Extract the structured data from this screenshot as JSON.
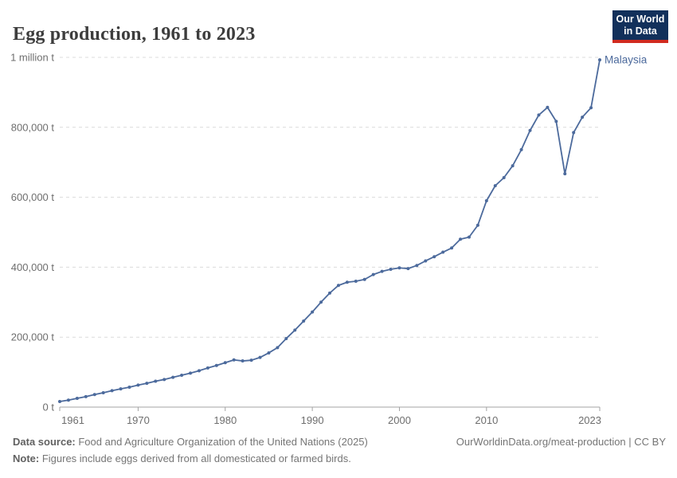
{
  "title": "Egg production, 1961 to 2023",
  "logo": {
    "line1": "Our World",
    "line2": "in Data"
  },
  "entity_label": "Malaysia",
  "footer": {
    "source_label": "Data source:",
    "source_text": " Food and Agriculture Organization of the United Nations (2025)",
    "note_label": "Note:",
    "note_text": " Figures include eggs derived from all domesticated or farmed birds.",
    "url_text": "OurWorldinData.org/meat-production | CC BY"
  },
  "colors": {
    "line": "#4C6A9C",
    "entity_label": "#4C6A9C",
    "grid": "#dcdcdc",
    "axis": "#a3a3a3",
    "tick_text": "#6e6e6e",
    "title_text": "#3d3d3d",
    "footer_text": "#757575",
    "logo_bg": "#12305b",
    "logo_red": "#d12b1f"
  },
  "chart_data": {
    "type": "line",
    "title": "Egg production, 1961 to 2023",
    "xlabel": "",
    "ylabel": "",
    "unit": "tonnes",
    "grid": true,
    "legend_position": "end-of-line",
    "xlim": [
      1961,
      2023
    ],
    "ylim": [
      0,
      1000000
    ],
    "x_tick_years": [
      1961,
      1970,
      1980,
      1990,
      2000,
      2010,
      2023
    ],
    "y_ticks": [
      {
        "value": 0,
        "label": "0 t"
      },
      {
        "value": 200000,
        "label": "200,000 t"
      },
      {
        "value": 400000,
        "label": "400,000 t"
      },
      {
        "value": 600000,
        "label": "600,000 t"
      },
      {
        "value": 800000,
        "label": "800,000 t"
      },
      {
        "value": 1000000,
        "label": "1 million t"
      }
    ],
    "series": [
      {
        "name": "Malaysia",
        "color": "#4C6A9C",
        "x": [
          1961,
          1962,
          1963,
          1964,
          1965,
          1966,
          1967,
          1968,
          1969,
          1970,
          1971,
          1972,
          1973,
          1974,
          1975,
          1976,
          1977,
          1978,
          1979,
          1980,
          1981,
          1982,
          1983,
          1984,
          1985,
          1986,
          1987,
          1988,
          1989,
          1990,
          1991,
          1992,
          1993,
          1994,
          1995,
          1996,
          1997,
          1998,
          1999,
          2000,
          2001,
          2002,
          2003,
          2004,
          2005,
          2006,
          2007,
          2008,
          2009,
          2010,
          2011,
          2012,
          2013,
          2014,
          2015,
          2016,
          2017,
          2018,
          2019,
          2020,
          2021,
          2022,
          2023
        ],
        "values": [
          16000,
          20000,
          25000,
          30000,
          36000,
          41000,
          47000,
          52000,
          57000,
          63000,
          68000,
          74000,
          79000,
          85000,
          91000,
          97000,
          104000,
          112000,
          119000,
          127000,
          135000,
          132000,
          134000,
          142000,
          155000,
          170000,
          196000,
          220000,
          246000,
          272000,
          300000,
          326000,
          348000,
          357000,
          360000,
          365000,
          379000,
          388000,
          394000,
          398000,
          396000,
          405000,
          418000,
          430000,
          443000,
          455000,
          480000,
          486000,
          520000,
          590000,
          633000,
          656000,
          690000,
          736000,
          791000,
          835000,
          857000,
          817000,
          667000,
          785000,
          829000,
          856000,
          993000
        ]
      }
    ]
  }
}
